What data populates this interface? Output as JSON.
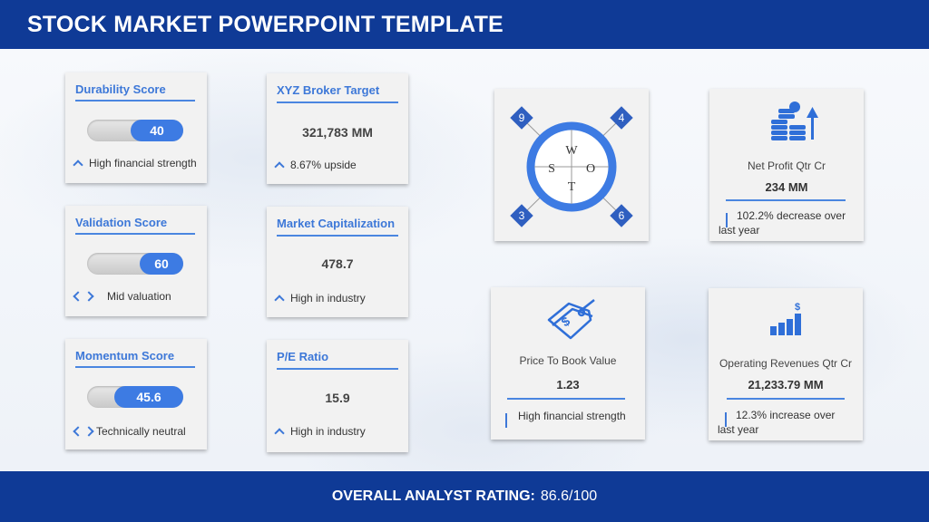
{
  "header": {
    "title": "STOCK MARKET POWERPOINT TEMPLATE"
  },
  "scores": [
    {
      "title": "Durability Score",
      "value": "40",
      "fraction": 0.55,
      "note": "High financial strength",
      "note_icon": "chevron-up-icon"
    },
    {
      "title": "Validation Score",
      "value": "60",
      "fraction": 0.45,
      "note": "Mid valuation",
      "note_icon": "chevrons-left-right-icon"
    },
    {
      "title": "Momentum Score",
      "value": "45.6",
      "fraction": 0.7,
      "note": "Technically  neutral",
      "note_icon": "chevrons-left-right-icon"
    }
  ],
  "metrics": [
    {
      "title": "XYZ Broker Target",
      "value": "321,783 MM",
      "note": "8.67% upside"
    },
    {
      "title": "Market Capitalization",
      "value": "478.7",
      "note": "High in industry"
    },
    {
      "title": "P/E Ratio",
      "value": "15.9",
      "note": "High in industry"
    }
  ],
  "swot": {
    "letters": {
      "w": "W",
      "s": "S",
      "o": "O",
      "t": "T"
    },
    "corners": {
      "top_left": "9",
      "top_right": "4",
      "bottom_left": "3",
      "bottom_right": "6"
    }
  },
  "stats": {
    "net_profit": {
      "label": "Net Profit Qtr Cr",
      "value": "234 MM",
      "note_line1": "102.2% decrease over",
      "note_line2": "last year",
      "icon": "coins-growth-icon"
    },
    "price_to_book": {
      "label": "Price To Book Value",
      "value": "1.23",
      "note": "High financial strength",
      "icon": "price-tag-icon"
    },
    "operating_revenues": {
      "label": "Operating Revenues Qtr Cr",
      "value": "21,233.79 MM",
      "note_line1": "12.3% increase over",
      "note_line2": "last year",
      "icon": "revenue-chart-icon"
    }
  },
  "footer": {
    "label": "OVERALL ANALYST RATING:",
    "value": "86.6/100"
  },
  "colors": {
    "brand": "#0f3a96",
    "accent": "#3d7be3"
  }
}
